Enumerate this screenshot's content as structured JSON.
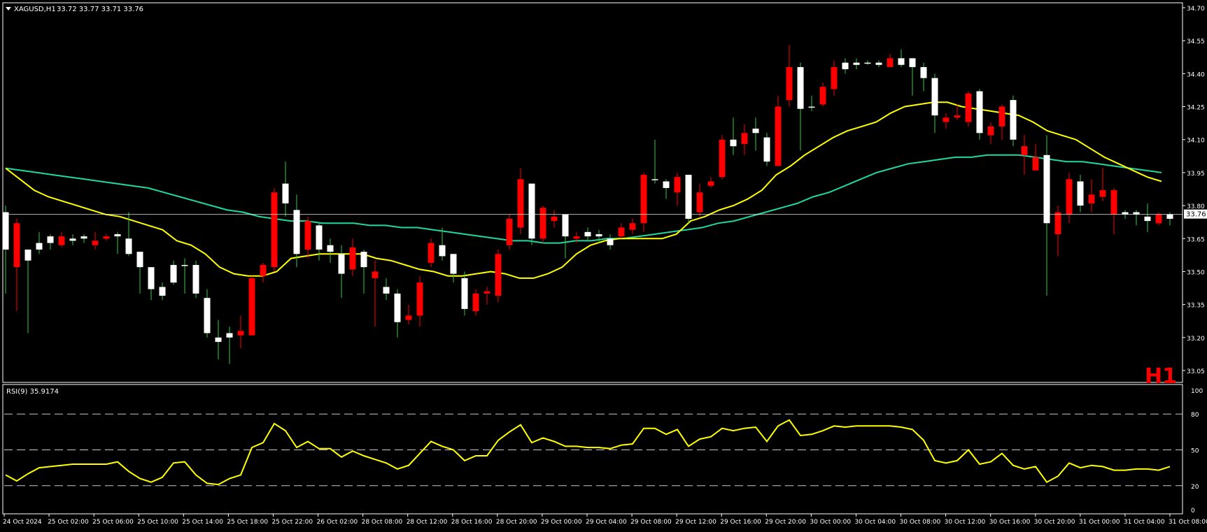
{
  "header": {
    "symbol_menu_icon": "triangle-down-icon",
    "symbol_label": "XAGUSD,H1",
    "ohlc_label": "33.72 33.77 33.71 33.76",
    "period_label": "H1"
  },
  "rsi_panel": {
    "label": "RSI(9) 35.9174",
    "levels": [
      80,
      50,
      20
    ],
    "axis_ticks": [
      "100",
      "80",
      "50",
      "20",
      "0"
    ]
  },
  "price_axis": {
    "ticks": [
      "34.70",
      "34.55",
      "34.40",
      "34.25",
      "34.10",
      "33.95",
      "33.80",
      "33.65",
      "33.50",
      "33.35",
      "33.20",
      "33.05"
    ],
    "current_price": "33.76"
  },
  "time_axis": {
    "labels": [
      "24 Oct 2024",
      "25 Oct 02:00",
      "25 Oct 06:00",
      "25 Oct 10:00",
      "25 Oct 14:00",
      "25 Oct 18:00",
      "25 Oct 22:00",
      "26 Oct 02:00",
      "28 Oct 08:00",
      "28 Oct 12:00",
      "28 Oct 16:00",
      "28 Oct 20:00",
      "29 Oct 00:00",
      "29 Oct 04:00",
      "29 Oct 08:00",
      "29 Oct 12:00",
      "29 Oct 16:00",
      "29 Oct 20:00",
      "30 Oct 00:00",
      "30 Oct 04:00",
      "30 Oct 08:00",
      "30 Oct 12:00",
      "30 Oct 16:00",
      "30 Oct 20:00",
      "31 Oct 00:00",
      "31 Oct 04:00",
      "31 Oct 08:00"
    ]
  },
  "colors": {
    "background": "#000000",
    "bull_candle": "#ffffff",
    "bear_candle": "#ff0000",
    "ma_fast": "#ffff00",
    "ma_slow": "#20d8a0",
    "rsi_line": "#ffff00",
    "axis_text": "#ffffff",
    "h1_label": "#ff0000"
  },
  "chart_data": {
    "type": "candlestick",
    "symbol": "XAGUSD",
    "timeframe": "H1",
    "ylim": [
      33.05,
      34.7
    ],
    "candles_ohlc": [
      [
        33.6,
        33.8,
        33.4,
        33.77
      ],
      [
        33.72,
        33.74,
        33.32,
        33.52
      ],
      [
        33.55,
        33.6,
        33.22,
        33.6
      ],
      [
        33.6,
        33.68,
        33.58,
        33.63
      ],
      [
        33.63,
        33.67,
        33.6,
        33.66
      ],
      [
        33.66,
        33.68,
        33.61,
        33.62
      ],
      [
        33.64,
        33.67,
        33.62,
        33.65
      ],
      [
        33.65,
        33.67,
        33.63,
        33.66
      ],
      [
        33.64,
        33.68,
        33.6,
        33.62
      ],
      [
        33.66,
        33.67,
        33.64,
        33.65
      ],
      [
        33.66,
        33.68,
        33.58,
        33.67
      ],
      [
        33.58,
        33.77,
        33.57,
        33.65
      ],
      [
        33.52,
        33.59,
        33.4,
        33.59
      ],
      [
        33.42,
        33.52,
        33.37,
        33.52
      ],
      [
        33.39,
        33.45,
        33.37,
        33.43
      ],
      [
        33.45,
        33.55,
        33.44,
        33.53
      ],
      [
        33.53,
        33.56,
        33.4,
        33.53
      ],
      [
        33.4,
        33.55,
        33.38,
        33.53
      ],
      [
        33.22,
        33.42,
        33.2,
        33.38
      ],
      [
        33.18,
        33.28,
        33.1,
        33.2
      ],
      [
        33.2,
        33.25,
        33.08,
        33.22
      ],
      [
        33.23,
        33.3,
        33.15,
        33.21
      ],
      [
        33.47,
        33.48,
        33.21,
        33.21
      ],
      [
        33.53,
        33.54,
        33.45,
        33.48
      ],
      [
        33.86,
        33.88,
        33.5,
        33.52
      ],
      [
        33.81,
        34.0,
        33.75,
        33.9
      ],
      [
        33.58,
        33.85,
        33.52,
        33.78
      ],
      [
        33.73,
        33.75,
        33.56,
        33.6
      ],
      [
        33.6,
        33.72,
        33.55,
        33.71
      ],
      [
        33.59,
        33.65,
        33.54,
        33.62
      ],
      [
        33.49,
        33.62,
        33.38,
        33.58
      ],
      [
        33.61,
        33.65,
        33.48,
        33.51
      ],
      [
        33.52,
        33.6,
        33.4,
        33.59
      ],
      [
        33.5,
        33.55,
        33.25,
        33.47
      ],
      [
        33.4,
        33.47,
        33.37,
        33.43
      ],
      [
        33.27,
        33.42,
        33.2,
        33.4
      ],
      [
        33.3,
        33.35,
        33.26,
        33.28
      ],
      [
        33.45,
        33.48,
        33.25,
        33.3
      ],
      [
        33.63,
        33.65,
        33.52,
        33.54
      ],
      [
        33.57,
        33.7,
        33.55,
        33.62
      ],
      [
        33.49,
        33.58,
        33.45,
        33.58
      ],
      [
        33.33,
        33.5,
        33.3,
        33.47
      ],
      [
        33.4,
        33.42,
        33.3,
        33.32
      ],
      [
        33.41,
        33.43,
        33.35,
        33.4
      ],
      [
        33.58,
        33.6,
        33.36,
        33.39
      ],
      [
        33.74,
        33.76,
        33.6,
        33.62
      ],
      [
        33.92,
        33.97,
        33.67,
        33.7
      ],
      [
        33.65,
        33.9,
        33.62,
        33.9
      ],
      [
        33.79,
        33.8,
        33.63,
        33.65
      ],
      [
        33.75,
        33.78,
        33.7,
        33.73
      ],
      [
        33.66,
        33.72,
        33.56,
        33.76
      ],
      [
        33.66,
        33.68,
        33.63,
        33.65
      ],
      [
        33.66,
        33.7,
        33.64,
        33.68
      ],
      [
        33.66,
        33.69,
        33.63,
        33.67
      ],
      [
        33.62,
        33.67,
        33.6,
        33.65
      ],
      [
        33.7,
        33.72,
        33.65,
        33.66
      ],
      [
        33.72,
        33.74,
        33.67,
        33.69
      ],
      [
        33.94,
        33.95,
        33.68,
        33.72
      ],
      [
        33.92,
        34.1,
        33.9,
        33.92
      ],
      [
        33.88,
        33.92,
        33.83,
        33.91
      ],
      [
        33.93,
        33.95,
        33.8,
        33.86
      ],
      [
        33.74,
        33.94,
        33.72,
        33.94
      ],
      [
        33.86,
        33.9,
        33.75,
        33.77
      ],
      [
        33.91,
        33.93,
        33.88,
        33.89
      ],
      [
        34.1,
        34.12,
        33.92,
        33.93
      ],
      [
        34.07,
        34.2,
        34.03,
        34.1
      ],
      [
        34.13,
        34.17,
        34.03,
        34.08
      ],
      [
        34.13,
        34.2,
        34.05,
        34.15
      ],
      [
        34.0,
        34.13,
        33.98,
        34.11
      ],
      [
        34.25,
        34.3,
        33.98,
        33.98
      ],
      [
        34.43,
        34.53,
        34.25,
        34.28
      ],
      [
        34.24,
        34.45,
        34.05,
        34.43
      ],
      [
        34.25,
        34.3,
        34.23,
        34.25
      ],
      [
        34.34,
        34.36,
        34.25,
        34.26
      ],
      [
        34.43,
        34.46,
        34.3,
        34.33
      ],
      [
        34.42,
        34.47,
        34.4,
        34.45
      ],
      [
        34.44,
        34.47,
        34.42,
        34.45
      ],
      [
        34.45,
        34.46,
        34.44,
        34.45
      ],
      [
        34.44,
        34.46,
        34.43,
        34.45
      ],
      [
        34.47,
        34.49,
        34.44,
        34.43
      ],
      [
        34.44,
        34.51,
        34.43,
        34.47
      ],
      [
        34.43,
        34.47,
        34.3,
        34.47
      ],
      [
        34.38,
        34.45,
        34.32,
        34.43
      ],
      [
        34.21,
        34.4,
        34.13,
        34.38
      ],
      [
        34.2,
        34.22,
        34.15,
        34.18
      ],
      [
        34.21,
        34.26,
        34.19,
        34.2
      ],
      [
        34.31,
        34.32,
        34.16,
        34.18
      ],
      [
        34.13,
        34.33,
        34.1,
        34.32
      ],
      [
        34.16,
        34.18,
        34.08,
        34.12
      ],
      [
        34.25,
        34.26,
        34.1,
        34.16
      ],
      [
        34.1,
        34.3,
        34.07,
        34.28
      ],
      [
        34.07,
        34.12,
        33.94,
        34.03
      ],
      [
        34.02,
        34.08,
        33.98,
        33.96
      ],
      [
        33.72,
        34.12,
        33.39,
        34.03
      ],
      [
        33.77,
        33.8,
        33.57,
        33.67
      ],
      [
        33.92,
        33.95,
        33.72,
        33.76
      ],
      [
        33.8,
        33.94,
        33.77,
        33.91
      ],
      [
        33.85,
        33.92,
        33.77,
        33.81
      ],
      [
        33.87,
        33.97,
        33.82,
        33.84
      ],
      [
        33.87,
        33.88,
        33.67,
        33.76
      ],
      [
        33.76,
        33.78,
        33.74,
        33.77
      ],
      [
        33.76,
        33.78,
        33.71,
        33.77
      ],
      [
        33.73,
        33.81,
        33.68,
        33.75
      ],
      [
        33.76,
        33.77,
        33.71,
        33.72
      ],
      [
        33.74,
        33.77,
        33.71,
        33.76
      ]
    ],
    "ma_fast": [
      33.97,
      33.92,
      33.87,
      33.84,
      33.82,
      33.8,
      33.78,
      33.76,
      33.75,
      33.73,
      33.71,
      33.69,
      33.64,
      33.62,
      33.58,
      33.52,
      33.49,
      33.48,
      33.48,
      33.5,
      33.56,
      33.57,
      33.58,
      33.58,
      33.58,
      33.58,
      33.56,
      33.55,
      33.53,
      33.51,
      33.5,
      33.48,
      33.48,
      33.49,
      33.5,
      33.49,
      33.47,
      33.47,
      33.49,
      33.52,
      33.58,
      33.62,
      33.64,
      33.65,
      33.65,
      33.65,
      33.65,
      33.67,
      33.73,
      33.75,
      33.78,
      33.8,
      33.83,
      33.87,
      33.94,
      33.98,
      34.03,
      34.07,
      34.11,
      34.14,
      34.16,
      34.18,
      34.22,
      34.25,
      34.26,
      34.27,
      34.27,
      34.25,
      34.24,
      34.23,
      34.22,
      34.21,
      34.18,
      34.14,
      34.12,
      34.1,
      34.06,
      34.02,
      33.99,
      33.96,
      33.93,
      33.91
    ],
    "ma_slow": [
      33.97,
      33.96,
      33.95,
      33.94,
      33.93,
      33.92,
      33.91,
      33.9,
      33.89,
      33.88,
      33.86,
      33.84,
      33.82,
      33.8,
      33.78,
      33.77,
      33.75,
      33.74,
      33.73,
      33.73,
      33.72,
      33.72,
      33.72,
      33.71,
      33.71,
      33.7,
      33.7,
      33.69,
      33.68,
      33.67,
      33.66,
      33.65,
      33.64,
      33.64,
      33.63,
      33.63,
      33.64,
      33.64,
      33.65,
      33.65,
      33.66,
      33.67,
      33.68,
      33.69,
      33.7,
      33.72,
      33.73,
      33.75,
      33.77,
      33.79,
      33.81,
      33.84,
      33.86,
      33.89,
      33.92,
      33.95,
      33.97,
      33.99,
      34.0,
      34.01,
      34.02,
      34.02,
      34.03,
      34.03,
      34.03,
      34.02,
      34.01,
      34.0,
      34.0,
      33.99,
      33.98,
      33.97,
      33.96,
      33.95
    ],
    "rsi": [
      29,
      24,
      30,
      35,
      36,
      37,
      38,
      38,
      38,
      38,
      40,
      32,
      26,
      23,
      27,
      39,
      40,
      29,
      22,
      21,
      26,
      29,
      52,
      56,
      72,
      66,
      52,
      57,
      51,
      51,
      44,
      49,
      45,
      42,
      39,
      34,
      37,
      47,
      57,
      53,
      50,
      41,
      45,
      45,
      58,
      65,
      71,
      56,
      60,
      57,
      53,
      53,
      52,
      52,
      51,
      54,
      55,
      68,
      68,
      63,
      67,
      53,
      59,
      61,
      68,
      66,
      68,
      69,
      57,
      70,
      75,
      62,
      63,
      66,
      70,
      69,
      70,
      70,
      70,
      70,
      69,
      67,
      58,
      41,
      39,
      41,
      50,
      38,
      40,
      47,
      37,
      34,
      36,
      23,
      28,
      39,
      35,
      37,
      36,
      33,
      33,
      34,
      34,
      33,
      36
    ],
    "rsi_ylim": [
      0,
      100
    ]
  }
}
